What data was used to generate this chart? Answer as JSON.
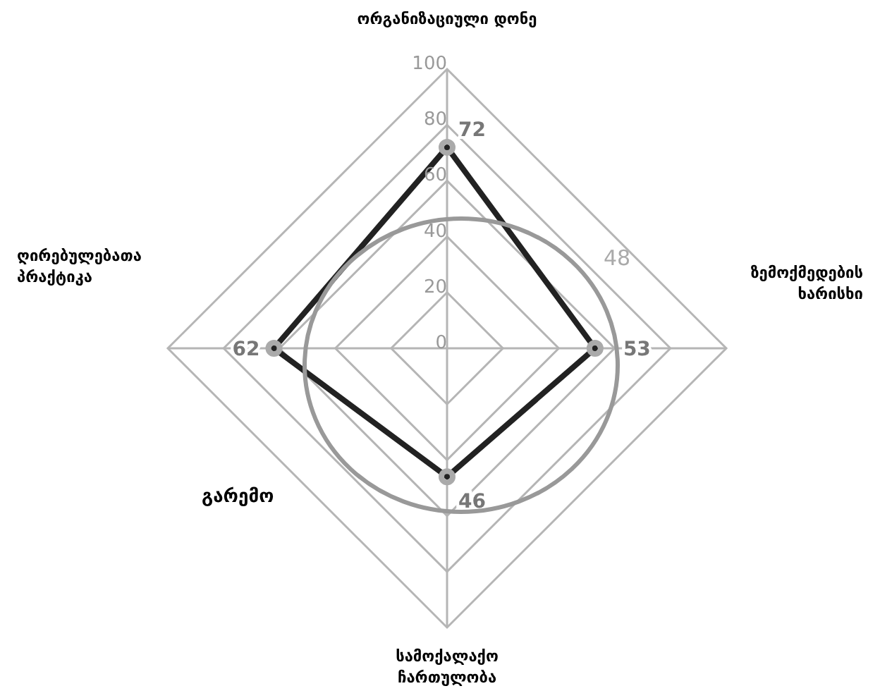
{
  "chart_data": {
    "type": "radar",
    "categories": [
      "ორგანიზაციული დონე",
      "ზემოქმედების ხარისხი",
      "სამოქალაქო ჩართულობა",
      "ღირებულებათა პრაქტიკა"
    ],
    "series": [
      {
        "color": "#222222",
        "values": [
          72,
          53,
          46,
          62
        ]
      }
    ],
    "ylim": [
      0,
      100
    ],
    "yticks": [
      0,
      20,
      40,
      60,
      80,
      100
    ],
    "data_labels": true,
    "marker": "circle",
    "grid": true,
    "annotations": [
      "48",
      "გარემო"
    ]
  }
}
